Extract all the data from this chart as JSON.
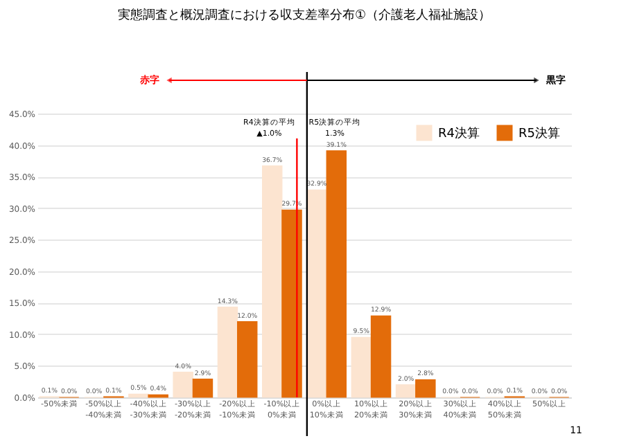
{
  "chart_data": {
    "type": "bar",
    "title": "実態調査と概況調査における収支差率分布①（介護老人福祉施設）",
    "categories": [
      "-50%未満",
      "-50%以上 -40%未満",
      "-40%以上 -30%未満",
      "-30%以上 -20%未満",
      "-20%以上 -10%未満",
      "-10%以上 0%未満",
      "0%以上 10%未満",
      "10%以上 20%未満",
      "20%以上 30%未満",
      "30%以上 40%未満",
      "40%以上 50%未満",
      "50%以上"
    ],
    "series": [
      {
        "name": "R4決算",
        "color": "#fce4d0",
        "values": [
          0.1,
          0.0,
          0.5,
          4.0,
          14.3,
          36.7,
          32.9,
          9.5,
          2.0,
          0.0,
          0.0,
          0.0
        ],
        "value_labels": [
          "0.1%",
          "0.0%",
          "0.5%",
          "4.0%",
          "14.3%",
          "36.7%",
          "32.9%",
          "9.5%",
          "2.0%",
          "0.0%",
          "0.0%",
          "0.0%"
        ]
      },
      {
        "name": "R5決算",
        "color": "#e36c0a",
        "values": [
          0.0,
          0.1,
          0.4,
          2.9,
          12.0,
          29.7,
          39.1,
          12.9,
          2.8,
          0.0,
          0.1,
          0.0
        ],
        "value_labels": [
          "0.0%",
          "0.1%",
          "0.4%",
          "2.9%",
          "12.0%",
          "29.7%",
          "39.1%",
          "12.9%",
          "2.8%",
          "0.0%",
          "0.1%",
          "0.0%"
        ]
      }
    ],
    "ylim": [
      0,
      45
    ],
    "yticks": [
      {
        "value": 0,
        "label": "0.0%"
      },
      {
        "value": 5,
        "label": "5.0%"
      },
      {
        "value": 10,
        "label": "10.0%"
      },
      {
        "value": 15,
        "label": "15.0%"
      },
      {
        "value": 20,
        "label": "20.0%"
      },
      {
        "value": 25,
        "label": "25.0%"
      },
      {
        "value": 30,
        "label": "30.0%"
      },
      {
        "value": 35,
        "label": "35.0%"
      },
      {
        "value": 40,
        "label": "40.0%"
      },
      {
        "value": 45,
        "label": "45.0%"
      }
    ],
    "ref_lines": [
      {
        "axis": "x",
        "value": "-10%以上 0%未満",
        "label": "R4決算の平均 ▲1.0%",
        "color": "#ff0000"
      },
      {
        "axis": "x",
        "value": "0%以上 10%未満",
        "label": "R5決算の平均 1.3%",
        "color": "#000000"
      }
    ],
    "annotations": [
      "赤字",
      "黒字",
      "11"
    ],
    "grid": "y",
    "legend": "top right"
  }
}
